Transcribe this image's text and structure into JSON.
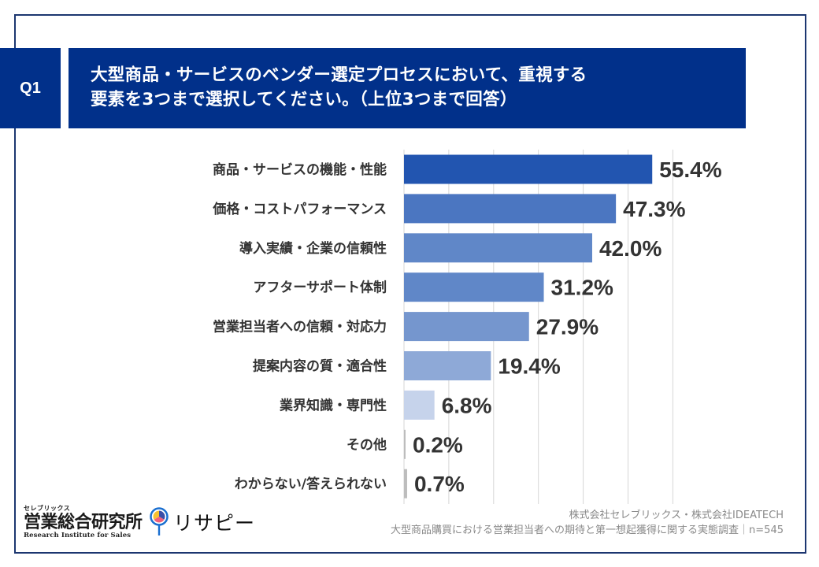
{
  "question": {
    "badge": "Q1",
    "lines": [
      "大型商品・サービスのベンダー選定プロセスにおいて、重視する",
      "要素を3つまで選択してください。（上位3つまで回答）"
    ]
  },
  "chart_data": {
    "type": "bar",
    "orientation": "horizontal",
    "title": "大型商品・サービスのベンダー選定プロセスにおいて、重視する要素を3つまで選択してください。（上位3つまで回答）",
    "xlabel": "",
    "ylabel": "",
    "unit": "%",
    "xlim": [
      0,
      60
    ],
    "grid": true,
    "gridline_step": 10,
    "legend": "none",
    "categories": [
      "商品・サービスの機能・性能",
      "価格・コストパフォーマンス",
      "導入実績・企業の信頼性",
      "アフターサポート体制",
      "営業担当者への信頼・対応力",
      "提案内容の質・適合性",
      "業界知識・専門性",
      "その他",
      "わからない/答えられない"
    ],
    "values": [
      55.4,
      47.3,
      42.0,
      31.2,
      27.9,
      19.4,
      6.8,
      0.2,
      0.7
    ],
    "value_labels": [
      "55.4%",
      "47.3%",
      "42.0%",
      "31.2%",
      "27.9%",
      "19.4%",
      "6.8%",
      "0.2%",
      "0.7%"
    ],
    "bar_colors": [
      "#2255b0",
      "#4b76c1",
      "#6087c8",
      "#6087c8",
      "#7596ce",
      "#8ea9d7",
      "#c6d3eb",
      "#bdbdbd",
      "#bdbdbd"
    ]
  },
  "branding": {
    "logo_kana": "セレブリックス",
    "logo_main": "営業総合研究所",
    "logo_en": "Research Institute for Sales",
    "service_name": "リサピー",
    "service_icon": "map-pin-pie-icon"
  },
  "footer": {
    "companies": "株式会社セレブリックス・株式会社IDEATECH",
    "survey": "大型商品購買における営業担当者への期待と第一想起獲得に関する実態調査｜n=545"
  },
  "colors": {
    "navy": "#01308a",
    "frame": "#1c3670",
    "text": "#333333",
    "grid": "#d6d6d6"
  }
}
